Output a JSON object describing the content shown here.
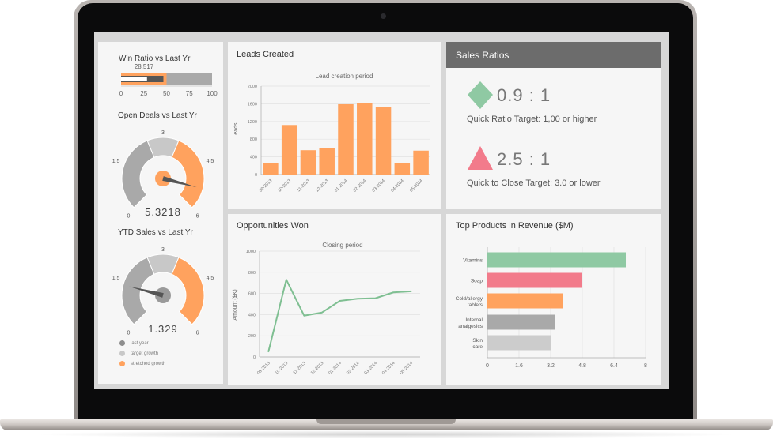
{
  "colors": {
    "orange": "#ffa25e",
    "gray": "#a9a9a9",
    "light_gray": "#c8c8c8",
    "green": "#8fc9a3",
    "pink": "#f27b8b",
    "dark_header": "#6c6c6c"
  },
  "win_ratio": {
    "title": "Win Ratio vs Last Yr",
    "value_label": "28.517",
    "value": 28.517,
    "target": 50,
    "max": 100,
    "ticks": [
      "0",
      "25",
      "50",
      "75",
      "100"
    ]
  },
  "open_deals": {
    "title": "Open Deals vs Last Yr",
    "value_label": "5.3218",
    "value": 5.3218,
    "min_label": "0",
    "max_label": "6",
    "low_label": "1.5",
    "mid_label": "3",
    "high_label": "4.5"
  },
  "ytd_sales": {
    "title": "YTD Sales vs Last Yr",
    "value_label": "1.329",
    "value": 1.329,
    "min_label": "0",
    "max_label": "6",
    "low_label": "1.5",
    "mid_label": "3",
    "high_label": "4.5"
  },
  "gauge_legend": [
    {
      "label": "last year",
      "icon": "last-year-dot-icon"
    },
    {
      "label": "target growth",
      "icon": "target-growth-dot-icon"
    },
    {
      "label": "stretched growth",
      "icon": "stretched-growth-dot-icon"
    }
  ],
  "leads": {
    "panel_title": "Leads Created",
    "chart_title": "Lead creation period",
    "ylabel": "Leads"
  },
  "opportunities": {
    "panel_title": "Opportunities Won",
    "chart_title": "Closing period",
    "ylabel": "Amount ($K)"
  },
  "sales_ratios": {
    "title": "Sales Ratios",
    "quick_ratio": "0.9 : 1",
    "quick_caption": "Quick Ratio Target: 1,00 or higher",
    "close_ratio": "2.5 : 1",
    "close_caption": "Quick to Close Target: 3.0 or lower"
  },
  "products": {
    "panel_title": "Top Products in Revenue ($M)"
  },
  "chart_data": [
    {
      "type": "bar",
      "title": "Lead creation period",
      "xlabel": "",
      "ylabel": "Leads",
      "categories": [
        "09-2013",
        "10-2013",
        "11-2013",
        "12-2013",
        "01-2014",
        "02-2014",
        "03-2014",
        "04-2014",
        "05-2014"
      ],
      "values": [
        250,
        1120,
        550,
        590,
        1590,
        1620,
        1520,
        250,
        540
      ],
      "ylim": [
        0,
        2000
      ],
      "yticks": [
        "0",
        "400",
        "800",
        "1200",
        "1600",
        "2000"
      ],
      "color": "#ffa25e",
      "grid": true
    },
    {
      "type": "line",
      "title": "Closing period",
      "xlabel": "",
      "ylabel": "Amount ($K)",
      "categories": [
        "09-2013",
        "10-2013",
        "11-2013",
        "12-2013",
        "01-2014",
        "02-2014",
        "03-2014",
        "04-2014",
        "05-2014"
      ],
      "values": [
        50,
        730,
        390,
        420,
        530,
        550,
        555,
        610,
        620
      ],
      "ylim": [
        0,
        1000
      ],
      "yticks": [
        "0",
        "200",
        "400",
        "600",
        "800",
        "1000"
      ],
      "color": "#7fbf92",
      "grid": true
    },
    {
      "type": "bar",
      "orientation": "horizontal",
      "title": "Top Products in Revenue ($M)",
      "categories": [
        "Vitamins",
        "Soap",
        "Cold/allergy tablets",
        "Internal analgesics",
        "Skin care"
      ],
      "values": [
        7.0,
        4.8,
        3.8,
        3.4,
        3.2
      ],
      "colors": [
        "#8fc9a3",
        "#f27b8b",
        "#ffa25e",
        "#a9a9a9",
        "#cccccc"
      ],
      "xlim": [
        0,
        8
      ],
      "xticks": [
        "0",
        "1.6",
        "3.2",
        "4.8",
        "6.4",
        "8"
      ],
      "grid": true
    }
  ]
}
